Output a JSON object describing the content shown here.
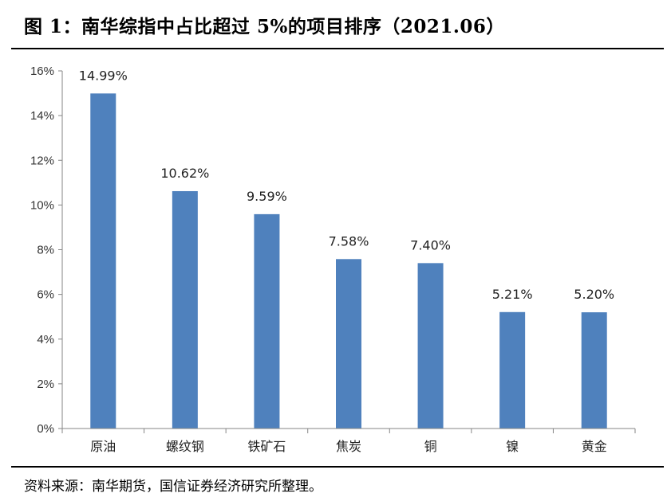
{
  "figure": {
    "title": "图 1：南华综指中占比超过 5%的项目排序（2021.06）",
    "source": "资料来源：南华期货，国信证券经济研究所整理。"
  },
  "chart_data": {
    "type": "bar",
    "categories": [
      "原油",
      "螺纹钢",
      "铁矿石",
      "焦炭",
      "铜",
      "镍",
      "黄金"
    ],
    "values": [
      14.99,
      10.62,
      9.59,
      7.58,
      7.4,
      5.21,
      5.2
    ],
    "value_labels": [
      "14.99%",
      "10.62%",
      "9.59%",
      "7.58%",
      "7.40%",
      "5.21%",
      "5.20%"
    ],
    "yticks": [
      "0%",
      "2%",
      "4%",
      "6%",
      "8%",
      "10%",
      "12%",
      "14%",
      "16%"
    ],
    "ylim": [
      0,
      16
    ],
    "grid": false,
    "legend": "none",
    "colors": {
      "bar": "#4f81bd",
      "axis": "#868686"
    }
  }
}
